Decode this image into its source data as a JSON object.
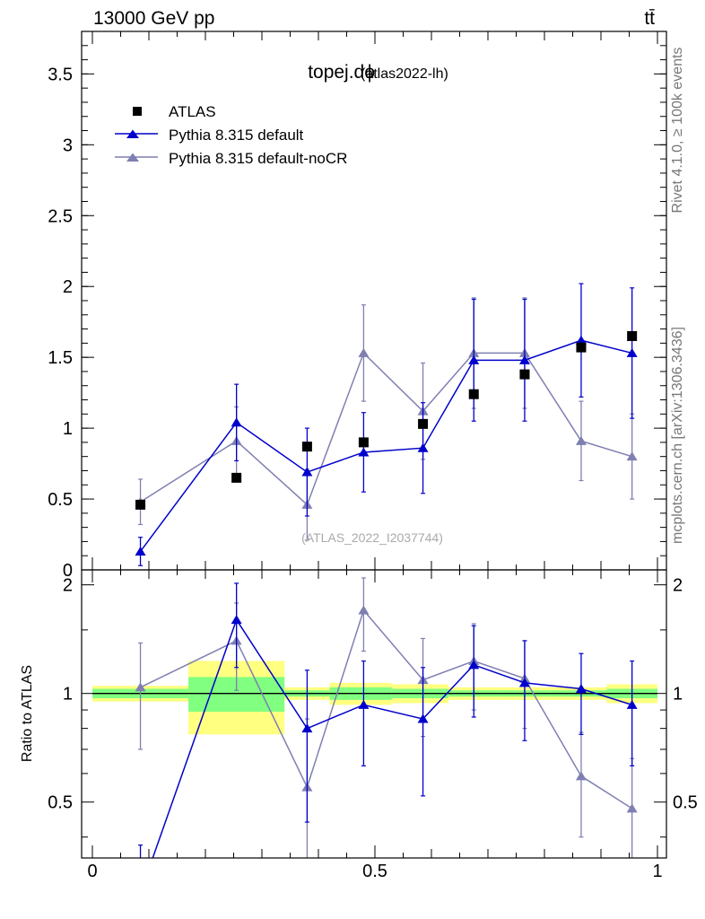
{
  "header": {
    "energy": "13000 GeV pp",
    "process": "tt̄"
  },
  "side_labels": {
    "rivet": "Rivet 4.1.0, ≥ 100k events",
    "mcplots": "mcplots.cern.ch [arXiv:1306.3436]"
  },
  "colors": {
    "atlas": "#000000",
    "default": "#0000cc",
    "nocr": "#7f7fb2",
    "band_inner": "#80ff80",
    "band_outer": "#ffff80"
  },
  "chart_data": [
    {
      "type": "scatter",
      "panel": "main",
      "title_main": "topej.dϕ",
      "title_sub": "(atlas2022-lh)",
      "watermark": "(ATLAS_2022_I2037744)",
      "xlabel": "",
      "ylabel": "",
      "xlim": [
        0,
        1
      ],
      "ylim": [
        0,
        3.8
      ],
      "yticks": [
        0,
        0.5,
        1,
        1.5,
        2,
        2.5,
        3,
        3.5
      ],
      "ytick_labels": [
        "0",
        "0.5",
        "1",
        "1.5",
        "2",
        "2.5",
        "3",
        "3.5"
      ],
      "legend_position": "top-left",
      "series": [
        {
          "name": "ATLAS",
          "style": "marker",
          "marker": "square",
          "color": "#000000",
          "x": [
            0.085,
            0.255,
            0.38,
            0.48,
            0.585,
            0.675,
            0.765,
            0.865,
            0.955
          ],
          "y": [
            0.46,
            0.65,
            0.87,
            0.9,
            1.03,
            1.24,
            1.38,
            1.57,
            1.65
          ]
        },
        {
          "name": "Pythia 8.315 default",
          "style": "line",
          "marker": "triangle",
          "color": "#0000cc",
          "x": [
            0.085,
            0.255,
            0.38,
            0.48,
            0.585,
            0.675,
            0.765,
            0.865,
            0.955
          ],
          "y": [
            0.13,
            1.04,
            0.69,
            0.83,
            0.86,
            1.48,
            1.48,
            1.62,
            1.53
          ],
          "err": [
            0.1,
            0.27,
            0.31,
            0.28,
            0.32,
            0.43,
            0.43,
            0.4,
            0.46
          ]
        },
        {
          "name": "Pythia 8.315 default-noCR",
          "style": "line",
          "marker": "triangle",
          "color": "#7f7fb2",
          "x": [
            0.085,
            0.255,
            0.38,
            0.48,
            0.585,
            0.675,
            0.765,
            0.865,
            0.955
          ],
          "y": [
            0.48,
            0.91,
            0.46,
            1.53,
            1.12,
            1.53,
            1.53,
            0.91,
            0.8
          ],
          "err": [
            0.16,
            0.24,
            0.25,
            0.34,
            0.34,
            0.39,
            0.39,
            0.28,
            0.3
          ]
        }
      ]
    },
    {
      "type": "scatter",
      "panel": "ratio",
      "ylabel": "Ratio to ATLAS",
      "xlim": [
        0,
        1
      ],
      "ylim": [
        0.35,
        2.2
      ],
      "xticks": [
        0,
        0.5,
        1
      ],
      "xtick_labels": [
        "0",
        "0.5",
        "1"
      ],
      "yticks": [
        0.5,
        1,
        2
      ],
      "ytick_labels": [
        "0.5",
        "1",
        "2"
      ],
      "reference_line": 1,
      "bands": [
        {
          "x0": 0.0,
          "x1": 0.17,
          "inner": 0.03,
          "outer": 0.05
        },
        {
          "x0": 0.17,
          "x1": 0.34,
          "inner": 0.11,
          "outer": 0.23
        },
        {
          "x0": 0.34,
          "x1": 0.42,
          "inner": 0.02,
          "outer": 0.04
        },
        {
          "x0": 0.42,
          "x1": 0.53,
          "inner": 0.04,
          "outer": 0.07
        },
        {
          "x0": 0.53,
          "x1": 0.63,
          "inner": 0.03,
          "outer": 0.06
        },
        {
          "x0": 0.63,
          "x1": 0.72,
          "inner": 0.02,
          "outer": 0.04
        },
        {
          "x0": 0.72,
          "x1": 0.81,
          "inner": 0.02,
          "outer": 0.04
        },
        {
          "x0": 0.81,
          "x1": 0.91,
          "inner": 0.02,
          "outer": 0.04
        },
        {
          "x0": 0.91,
          "x1": 1.0,
          "inner": 0.03,
          "outer": 0.06
        }
      ],
      "series": [
        {
          "name": "Pythia 8.315 default",
          "color": "#0000cc",
          "x": [
            0.085,
            0.255,
            0.38,
            0.48,
            0.585,
            0.675,
            0.765,
            0.865,
            0.955
          ],
          "y": [
            0.28,
            1.6,
            0.8,
            0.93,
            0.85,
            1.2,
            1.07,
            1.03,
            0.93
          ],
          "err": [
            0.1,
            0.42,
            0.36,
            0.3,
            0.33,
            0.34,
            0.33,
            0.26,
            0.3
          ]
        },
        {
          "name": "Pythia 8.315 default-noCR",
          "color": "#7f7fb2",
          "x": [
            0.085,
            0.255,
            0.38,
            0.48,
            0.585,
            0.675,
            0.765,
            0.865,
            0.955
          ],
          "y": [
            1.04,
            1.4,
            0.55,
            1.7,
            1.09,
            1.23,
            1.1,
            0.59,
            0.48
          ],
          "err": [
            0.34,
            0.38,
            0.3,
            0.39,
            0.33,
            0.33,
            0.3,
            0.19,
            0.18
          ]
        }
      ]
    }
  ]
}
